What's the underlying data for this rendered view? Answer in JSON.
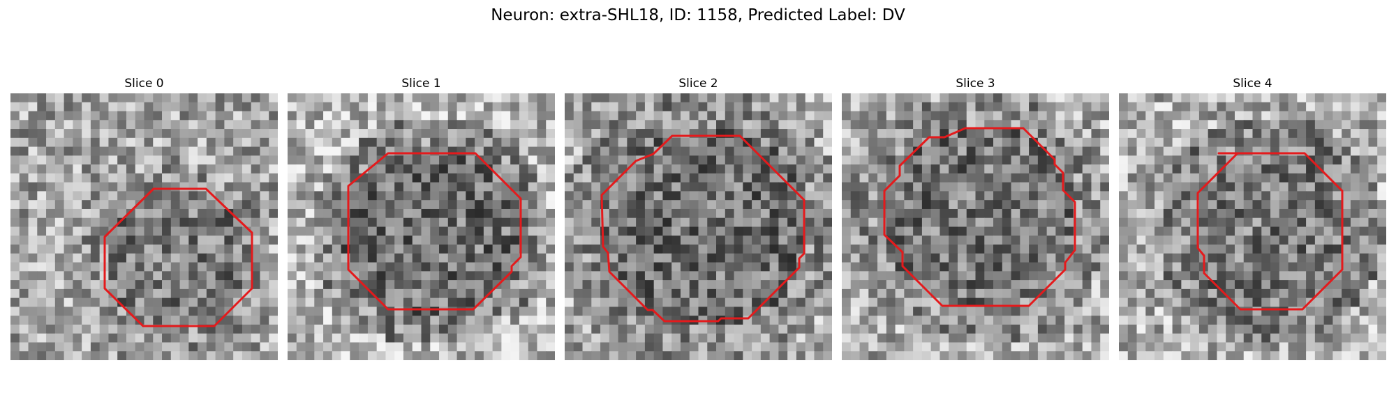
{
  "title": "Neuron: extra-SHL18, ID: 1158, Predicted Label: DV",
  "panels": [
    {
      "label": "Slice 0"
    },
    {
      "label": "Slice 1"
    },
    {
      "label": "Slice 2"
    },
    {
      "label": "Slice 3"
    },
    {
      "label": "Slice 4"
    }
  ],
  "image": {
    "colormap": "gray",
    "grid_size": 30
  },
  "colors": {
    "contour": "#e41a1c"
  }
}
